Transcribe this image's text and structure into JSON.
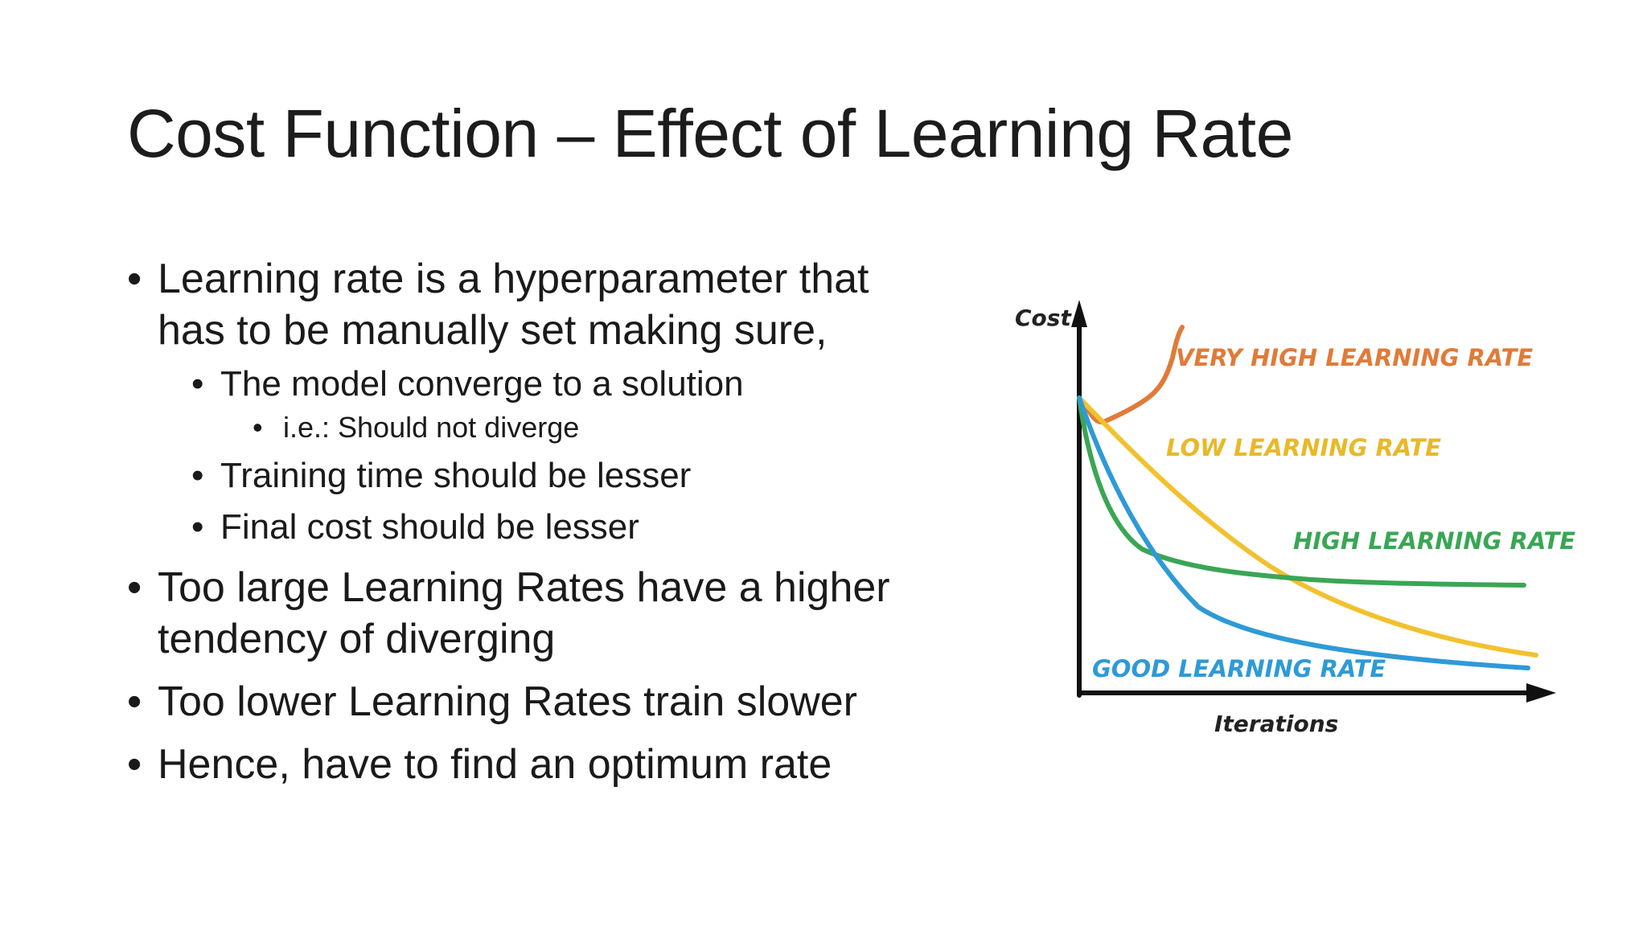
{
  "slide": {
    "title": "Cost Function – Effect of Learning Rate"
  },
  "bullets": {
    "b1": "Learning rate is a hyperparameter that has to be manually set making sure,",
    "b1_1": "The model converge to a solution",
    "b1_1_1": "i.e.: Should not diverge",
    "b1_2": "Training time should be lesser",
    "b1_3": "Final cost should be lesser",
    "b2": "Too large Learning Rates have a higher tendency of diverging",
    "b3": "Too lower Learning Rates train slower",
    "b4": "Hence, have to find an optimum rate",
    "marker": "•"
  },
  "chart_data": {
    "type": "line",
    "xlabel": "Iterations",
    "ylabel": "Cost",
    "series": [
      {
        "name": "VERY HIGH LEARNING RATE",
        "color": "#e07b39"
      },
      {
        "name": "LOW LEARNING RATE",
        "color": "#f2c12e"
      },
      {
        "name": "HIGH LEARNING RATE",
        "color": "#3aa655"
      },
      {
        "name": "GOOD LEARNING RATE",
        "color": "#2e9ad6"
      }
    ]
  }
}
